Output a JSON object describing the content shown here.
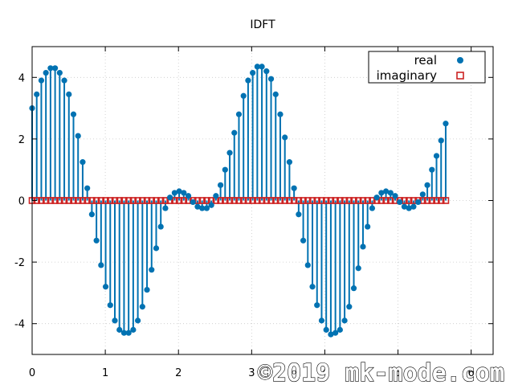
{
  "chart_data": {
    "type": "scatter",
    "title": "IDFT",
    "xlabel": "",
    "ylabel": "",
    "xlim": [
      0,
      6.3
    ],
    "ylim": [
      -5,
      5
    ],
    "x_ticks": [
      0,
      1,
      2,
      3,
      4,
      5,
      6
    ],
    "y_ticks": [
      -4,
      -2,
      0,
      2,
      4
    ],
    "x_tick_labels": [
      "0",
      "1",
      "2",
      "3",
      "4",
      "5",
      "6"
    ],
    "y_tick_labels": [
      "-4",
      "-2",
      "0",
      "2",
      "4"
    ],
    "grid": true,
    "legend_position": "top-right",
    "x_step": 0.0628,
    "series": [
      {
        "name": "real",
        "marker": "filled-circle",
        "stem": true,
        "color": "#0072b2",
        "values": [
          3.0,
          3.45,
          3.9,
          4.15,
          4.3,
          4.3,
          4.15,
          3.9,
          3.45,
          2.8,
          2.1,
          1.25,
          0.4,
          -0.45,
          -1.3,
          -2.1,
          -2.8,
          -3.4,
          -3.9,
          -4.2,
          -4.3,
          -4.3,
          -4.2,
          -3.9,
          -3.45,
          -2.9,
          -2.25,
          -1.55,
          -0.85,
          -0.25,
          0.1,
          0.25,
          0.3,
          0.25,
          0.15,
          -0.05,
          -0.2,
          -0.25,
          -0.25,
          -0.15,
          0.15,
          0.5,
          1.0,
          1.55,
          2.2,
          2.8,
          3.4,
          3.9,
          4.15,
          4.35,
          4.35,
          4.2,
          3.95,
          3.45,
          2.8,
          2.05,
          1.25,
          0.4,
          -0.45,
          -1.3,
          -2.1,
          -2.8,
          -3.4,
          -3.9,
          -4.2,
          -4.35,
          -4.3,
          -4.2,
          -3.9,
          -3.45,
          -2.85,
          -2.2,
          -1.5,
          -0.85,
          -0.25,
          0.1,
          0.25,
          0.3,
          0.25,
          0.15,
          -0.05,
          -0.2,
          -0.25,
          -0.2,
          -0.05,
          0.2,
          0.5,
          1.0,
          1.45,
          1.95,
          2.5
        ]
      },
      {
        "name": "imaginary",
        "marker": "open-square",
        "stem": false,
        "color": "#cc2222",
        "constant_value": 0
      }
    ]
  },
  "watermark": "©2019 mk-mode.com"
}
